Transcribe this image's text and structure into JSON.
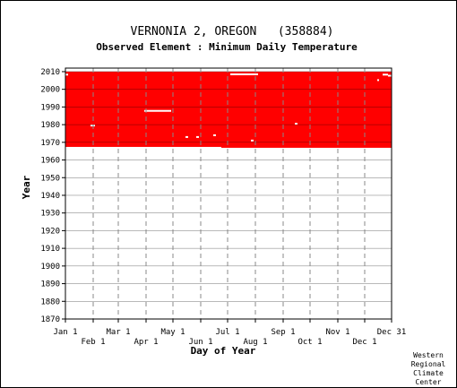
{
  "chart_data": {
    "type": "heatmap",
    "title": "VERNONIA 2, OREGON   (358884)",
    "subtitle": "Observed Element : Minimum Daily Temperature",
    "xlabel": "Day of Year",
    "ylabel": "Year",
    "xlim": [
      1,
      365
    ],
    "ylim": [
      1870,
      2012
    ],
    "y_ticks": [
      1870,
      1880,
      1890,
      1900,
      1910,
      1920,
      1930,
      1940,
      1950,
      1960,
      1970,
      1980,
      1990,
      2000,
      2010
    ],
    "x_ticks_upper": [
      {
        "label": "Jan 1",
        "day": 1
      },
      {
        "label": "Mar 1",
        "day": 60
      },
      {
        "label": "May 1",
        "day": 121
      },
      {
        "label": "Jul 1",
        "day": 182
      },
      {
        "label": "Sep 1",
        "day": 244
      },
      {
        "label": "Nov 1",
        "day": 305
      },
      {
        "label": "Dec 31",
        "day": 365
      }
    ],
    "x_ticks_lower": [
      {
        "label": "Feb 1",
        "day": 32
      },
      {
        "label": "Apr 1",
        "day": 91
      },
      {
        "label": "Jun 1",
        "day": 152
      },
      {
        "label": "Aug 1",
        "day": 213
      },
      {
        "label": "Oct 1",
        "day": 274
      },
      {
        "label": "Dec 1",
        "day": 335
      }
    ],
    "month_gridline_days": [
      32,
      60,
      91,
      121,
      152,
      182,
      213,
      244,
      274,
      305,
      335
    ],
    "grid": true,
    "data_color": "#ff0000",
    "data_top_year": 2010,
    "data_start_by_day_range": [
      {
        "from_day": 1,
        "to_day": 175,
        "start_year": 1967.4
      },
      {
        "from_day": 175,
        "to_day": 365,
        "start_year": 1966.9
      }
    ],
    "missing_segments": [
      {
        "year": 2008.5,
        "from_day": 185,
        "to_day": 215
      },
      {
        "year": 2008.3,
        "from_day": 1,
        "to_day": 3
      },
      {
        "year": 2008.3,
        "from_day": 355,
        "to_day": 360
      },
      {
        "year": 2007.7,
        "from_day": 361,
        "to_day": 365
      },
      {
        "year": 2005.2,
        "from_day": 349,
        "to_day": 350
      },
      {
        "year": 1987.8,
        "from_day": 89,
        "to_day": 118
      },
      {
        "year": 1979.5,
        "from_day": 29,
        "to_day": 33
      },
      {
        "year": 1980.5,
        "from_day": 257,
        "to_day": 259
      },
      {
        "year": 1974.0,
        "from_day": 166,
        "to_day": 168
      },
      {
        "year": 1973.0,
        "from_day": 135,
        "to_day": 137
      },
      {
        "year": 1973.0,
        "from_day": 147,
        "to_day": 149
      },
      {
        "year": 1971.0,
        "from_day": 208,
        "to_day": 210
      }
    ],
    "credit_lines": [
      "Western",
      "Regional",
      "Climate",
      "Center"
    ]
  }
}
